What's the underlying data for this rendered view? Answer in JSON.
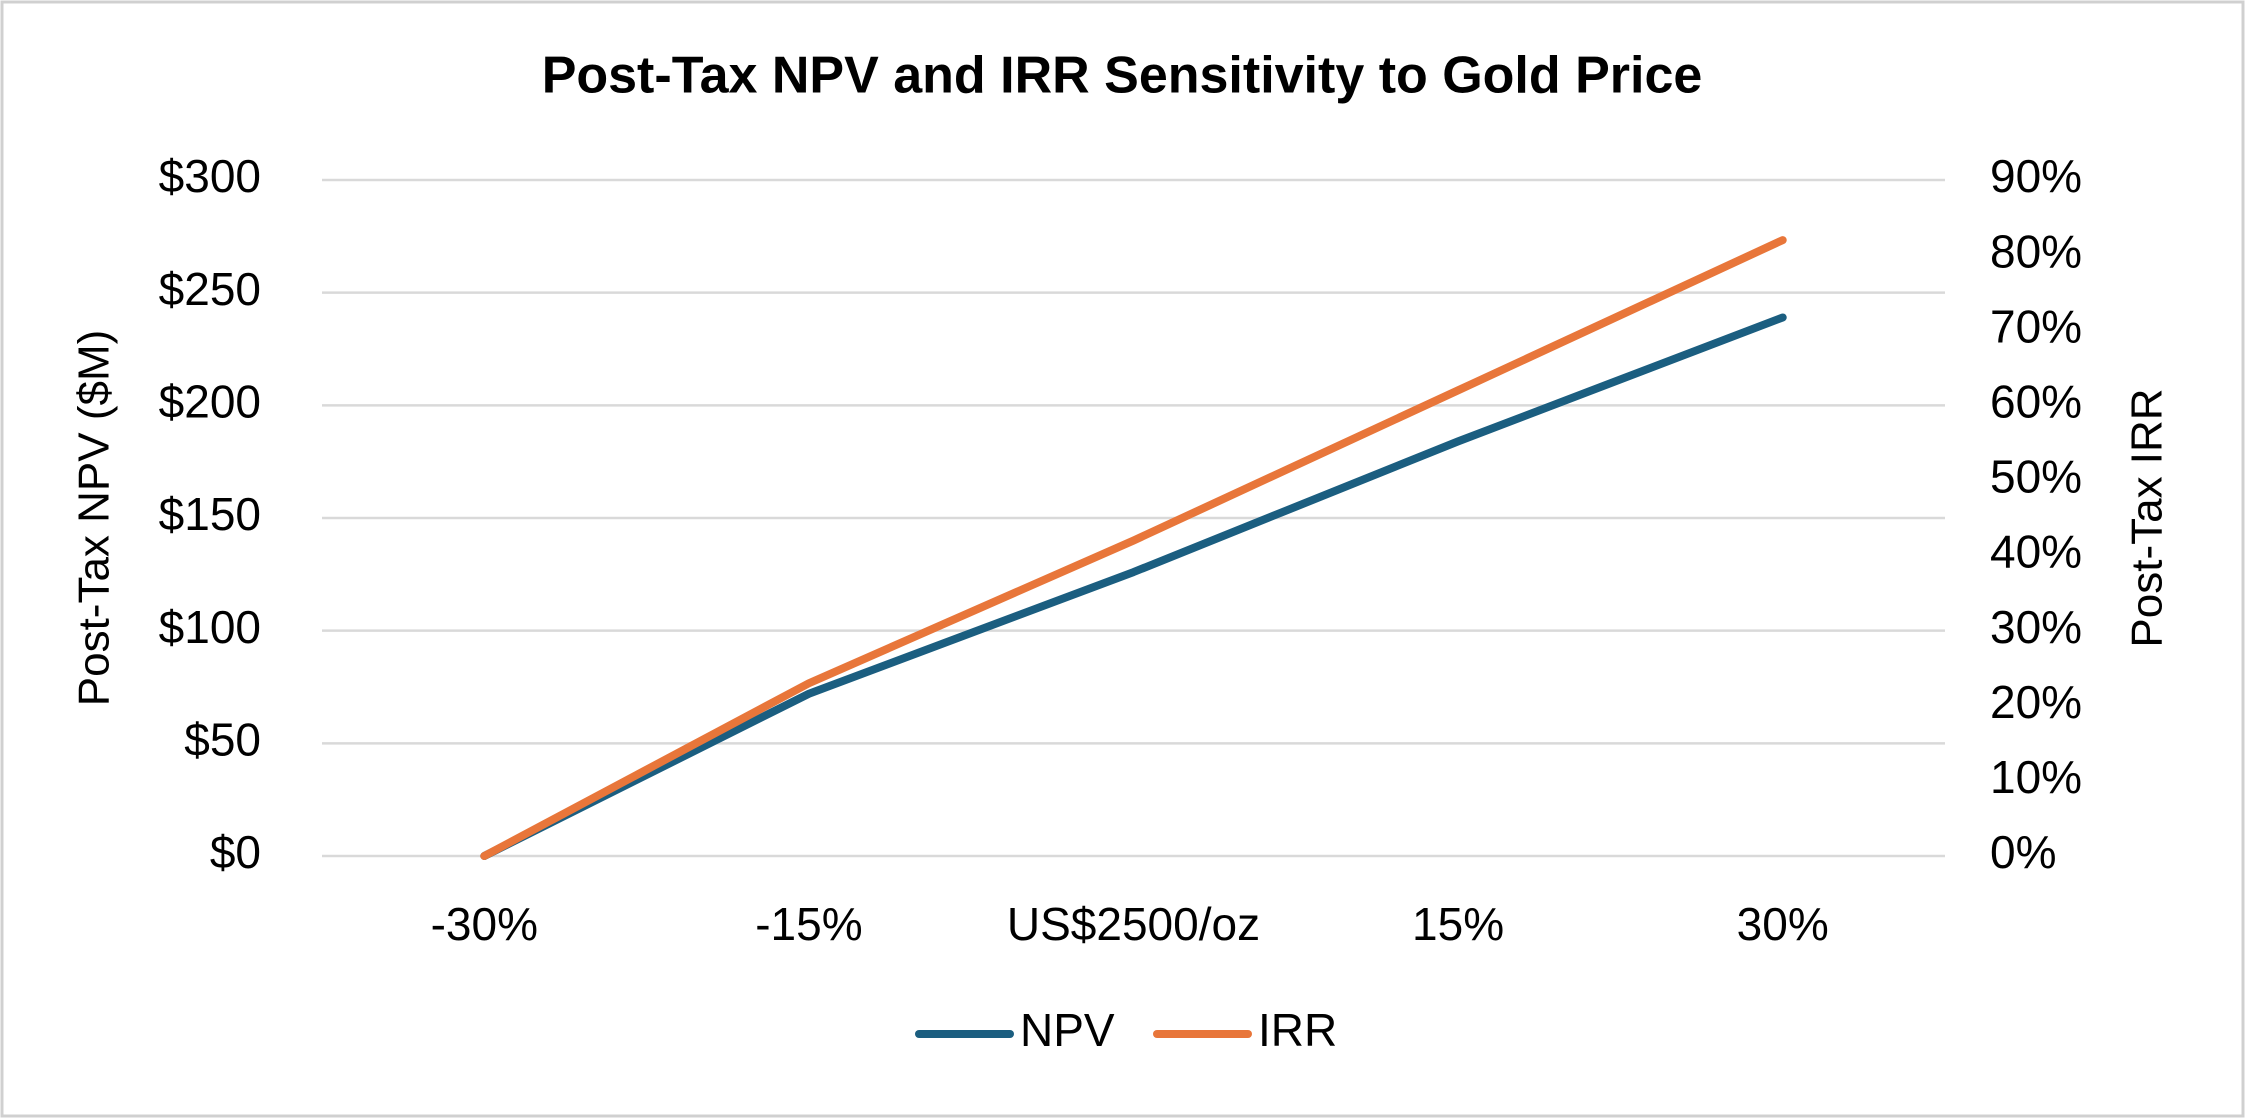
{
  "chart_data": {
    "type": "line",
    "title": "Post-Tax NPV and IRR Sensitivity to Gold Price",
    "y_label": "Post-Tax NPV ($M)",
    "y2_label": "Post-Tax IRR",
    "categories": [
      "-30%",
      "-15%",
      "US$2500/oz",
      "15%",
      "30%"
    ],
    "series": [
      {
        "name": "NPV",
        "color": "#1b5e80",
        "values": [
          0,
          72,
          126,
          184,
          239
        ]
      },
      {
        "name": "IRR",
        "color": "#e8763a",
        "axis": "y2",
        "values": [
          0,
          23,
          42,
          62,
          82
        ]
      }
    ],
    "ylim": [
      0,
      300
    ],
    "yticks": [
      {
        "value": 0,
        "label": "$0"
      },
      {
        "value": 50,
        "label": "$50"
      },
      {
        "value": 100,
        "label": "$100"
      },
      {
        "value": 150,
        "label": "$150"
      },
      {
        "value": 200,
        "label": "$200"
      },
      {
        "value": 250,
        "label": "$250"
      },
      {
        "value": 300,
        "label": "$300"
      }
    ],
    "y2lim": [
      0,
      90
    ],
    "y2ticks": [
      {
        "value": 0,
        "label": "0%"
      },
      {
        "value": 10,
        "label": "10%"
      },
      {
        "value": 20,
        "label": "20%"
      },
      {
        "value": 30,
        "label": "30%"
      },
      {
        "value": 40,
        "label": "40%"
      },
      {
        "value": 50,
        "label": "50%"
      },
      {
        "value": 60,
        "label": "60%"
      },
      {
        "value": 70,
        "label": "70%"
      },
      {
        "value": 80,
        "label": "80%"
      },
      {
        "value": 90,
        "label": "90%"
      }
    ],
    "grid": true,
    "legend": "bottom"
  }
}
